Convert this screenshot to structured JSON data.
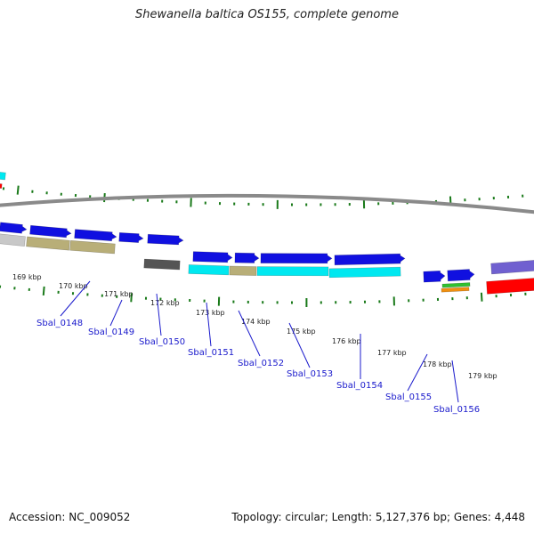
{
  "header": {
    "title": "Shewanella baltica OS155, complete genome"
  },
  "footer": {
    "accession": "Accession: NC_009052",
    "summary": "Topology: circular; Length: 5,127,376 bp; Genes: 4,448"
  },
  "ruler": {
    "labels": [
      "169 kbp",
      "170 kbp",
      "171 kbp",
      "172 kbp",
      "173 kbp",
      "174 kbp",
      "175 kbp",
      "176 kbp",
      "177 kbp",
      "178 kbp",
      "179 kbp"
    ]
  },
  "genes": {
    "labels": [
      "Sbal_0148",
      "Sbal_0149",
      "Sbal_0150",
      "Sbal_0151",
      "Sbal_0152",
      "Sbal_0153",
      "Sbal_0154",
      "Sbal_0155",
      "Sbal_0156"
    ]
  },
  "colors": {
    "cds": "#1010e0",
    "cyan": "#00e8f0",
    "khaki": "#b8ae78",
    "darkgray": "#555555",
    "lightgray": "#c8c8c8",
    "red": "#ff0000",
    "purple": "#7060d0",
    "green": "#30c030",
    "orange": "#f09010",
    "tick": "#1a7a1a",
    "backbone": "#8a8a8a",
    "label": "#1a1acc"
  }
}
